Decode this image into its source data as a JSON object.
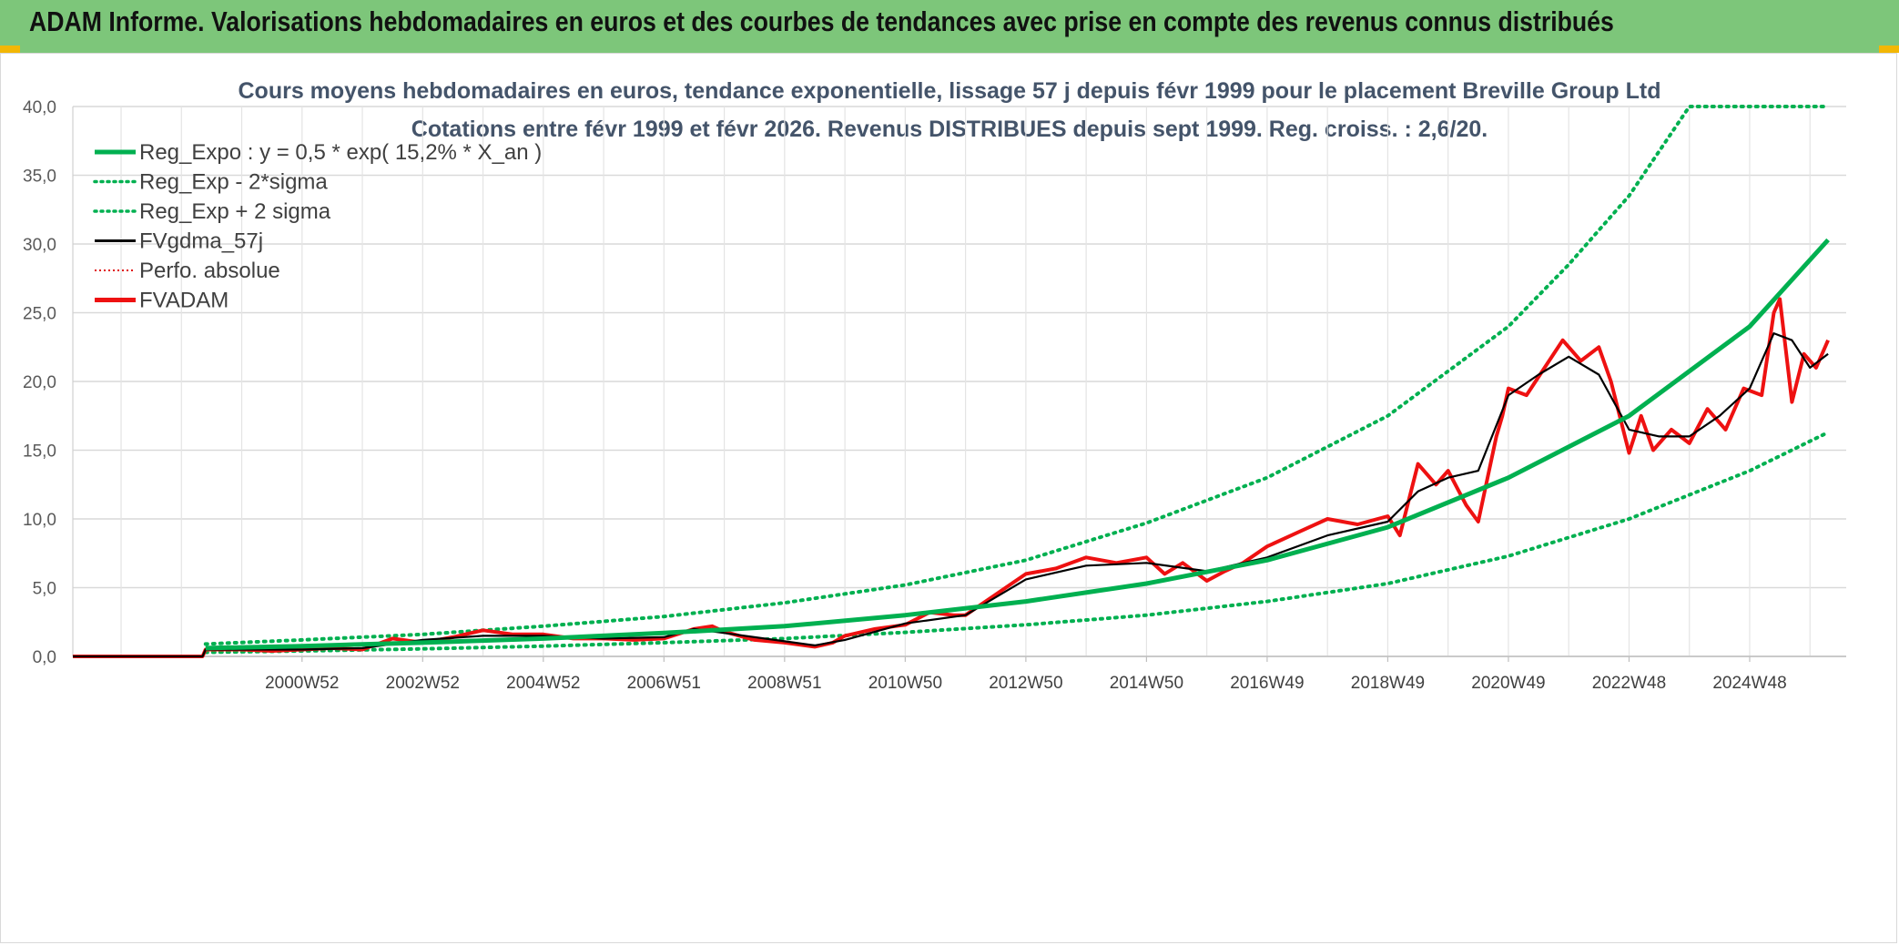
{
  "banner": {
    "title": "ADAM Informe. Valorisations hebdomadaires en euros et des courbes de tendances avec prise en compte des revenus connus distribués"
  },
  "colors": {
    "banner_bg": "#7dc67a",
    "reg_expo": "#00b050",
    "reg_band": "#00b050",
    "fvgdma": "#000000",
    "perfo": "#e01010",
    "fvadam": "#ee1111",
    "grid": "#d9d9d9"
  },
  "chart_data": {
    "type": "line",
    "title": "Cours moyens hebdomadaires en euros, tendance exponentielle, lissage 57 j depuis févr 1999 pour le placement Breville Group Ltd",
    "subtitle": "Cotations entre févr 1999 et févr 2026. Revenus DISTRIBUES depuis sept 1999. Reg. croiss. : 2,6/20.",
    "ylim": [
      0,
      40
    ],
    "yticks": [
      "0,0",
      "5,0",
      "10,0",
      "15,0",
      "20,0",
      "25,0",
      "30,0",
      "35,0",
      "40,0"
    ],
    "xlim": [
      1996.2,
      2025.6
    ],
    "xticks": [
      {
        "x": 2000.0,
        "label": "2000W52"
      },
      {
        "x": 2002.0,
        "label": "2002W52"
      },
      {
        "x": 2004.0,
        "label": "2004W52"
      },
      {
        "x": 2006.0,
        "label": "2006W51"
      },
      {
        "x": 2008.0,
        "label": "2008W51"
      },
      {
        "x": 2010.0,
        "label": "2010W50"
      },
      {
        "x": 2012.0,
        "label": "2012W50"
      },
      {
        "x": 2014.0,
        "label": "2014W50"
      },
      {
        "x": 2016.0,
        "label": "2016W49"
      },
      {
        "x": 2018.0,
        "label": "2018W49"
      },
      {
        "x": 2020.0,
        "label": "2020W49"
      },
      {
        "x": 2022.0,
        "label": "2022W48"
      },
      {
        "x": 2024.0,
        "label": "2024W48"
      }
    ],
    "grid": true,
    "legend_position": "top-left",
    "legend": [
      {
        "key": "reg_expo",
        "label": "Reg_Expo : y = 0,5 * exp( 15,2% *  X_an )",
        "style": "solid-thick",
        "color": "#00b050"
      },
      {
        "key": "reg_low",
        "label": "Reg_Exp - 2*sigma",
        "style": "dotted",
        "color": "#00b050"
      },
      {
        "key": "reg_high",
        "label": "Reg_Exp + 2 sigma",
        "style": "dotted",
        "color": "#00b050"
      },
      {
        "key": "fvgdma",
        "label": "FVgdma_57j",
        "style": "solid",
        "color": "#000000"
      },
      {
        "key": "perfo",
        "label": "Perfo. absolue",
        "style": "dotted-thin",
        "color": "#e01010"
      },
      {
        "key": "fvadam",
        "label": "FVADAM",
        "style": "solid-thick",
        "color": "#ee1111"
      }
    ],
    "series": [
      {
        "key": "reg_expo",
        "x": [
          1998.4,
          2000,
          2002,
          2004,
          2006,
          2008,
          2010,
          2012,
          2014,
          2016,
          2018,
          2020,
          2022,
          2024,
          2025.3
        ],
        "y": [
          0.6,
          0.75,
          1.0,
          1.3,
          1.7,
          2.2,
          3.0,
          4.0,
          5.3,
          7.0,
          9.4,
          13.0,
          17.5,
          24.0,
          30.3
        ]
      },
      {
        "key": "reg_low",
        "x": [
          1998.4,
          2000,
          2002,
          2004,
          2006,
          2008,
          2010,
          2012,
          2014,
          2016,
          2018,
          2020,
          2022,
          2024,
          2025.3
        ],
        "y": [
          0.3,
          0.4,
          0.55,
          0.75,
          1.0,
          1.3,
          1.75,
          2.3,
          3.0,
          4.0,
          5.3,
          7.3,
          10.0,
          13.5,
          16.3
        ]
      },
      {
        "key": "reg_high",
        "x": [
          1998.4,
          2000,
          2002,
          2004,
          2006,
          2008,
          2010,
          2012,
          2014,
          2016,
          2018,
          2020,
          2021,
          2022,
          2023.0,
          2025.3
        ],
        "y": [
          0.9,
          1.2,
          1.6,
          2.2,
          2.9,
          3.9,
          5.2,
          7.0,
          9.7,
          13.0,
          17.5,
          24.0,
          28.5,
          33.5,
          40.0,
          40.0
        ]
      },
      {
        "key": "fvgdma",
        "x": [
          1996.2,
          1998.35,
          1998.4,
          1999,
          2000,
          2001,
          2002,
          2003,
          2004,
          2005,
          2006,
          2006.5,
          2007,
          2008,
          2008.5,
          2009,
          2010,
          2011,
          2012,
          2013,
          2014,
          2015,
          2016,
          2017,
          2018,
          2018.5,
          2019,
          2019.5,
          2020,
          2020.5,
          2021,
          2021.5,
          2022,
          2022.5,
          2023,
          2023.5,
          2024,
          2024.4,
          2024.7,
          2025,
          2025.3
        ],
        "y": [
          0,
          0,
          0.5,
          0.5,
          0.5,
          0.6,
          1.2,
          1.5,
          1.5,
          1.3,
          1.4,
          2.0,
          1.7,
          1.1,
          0.8,
          1.2,
          2.4,
          3.0,
          5.6,
          6.6,
          6.8,
          6.2,
          7.2,
          8.8,
          9.8,
          12.0,
          13.0,
          13.5,
          19.0,
          20.5,
          21.8,
          20.5,
          16.5,
          16.0,
          16.0,
          17.5,
          19.5,
          23.5,
          23.0,
          21.0,
          22.0
        ]
      },
      {
        "key": "fvadam",
        "x": [
          1996.2,
          1998.35,
          1998.4,
          1999,
          1999.5,
          2000,
          2000.5,
          2001,
          2001.5,
          2002,
          2002.5,
          2003,
          2003.5,
          2004,
          2004.5,
          2005,
          2005.5,
          2006,
          2006.5,
          2006.8,
          2007,
          2007.5,
          2008,
          2008.5,
          2008.8,
          2009,
          2009.5,
          2010,
          2010.4,
          2010.8,
          2011,
          2011.5,
          2012,
          2012.5,
          2013,
          2013.5,
          2014,
          2014.3,
          2014.6,
          2015,
          2015.3,
          2015.6,
          2016,
          2016.5,
          2017,
          2017.5,
          2018,
          2018.2,
          2018.5,
          2018.8,
          2019,
          2019.3,
          2019.5,
          2019.8,
          2019.9,
          2020,
          2020.3,
          2020.6,
          2020.9,
          2021.2,
          2021.5,
          2021.7,
          2022.0,
          2022.2,
          2022.4,
          2022.7,
          2023.0,
          2023.3,
          2023.6,
          2023.9,
          2024.2,
          2024.4,
          2024.5,
          2024.7,
          2024.9,
          2025.1,
          2025.3
        ],
        "y": [
          0,
          0,
          0.5,
          0.5,
          0.4,
          0.5,
          0.6,
          0.5,
          1.3,
          1.0,
          1.4,
          1.9,
          1.6,
          1.6,
          1.3,
          1.3,
          1.2,
          1.3,
          2.0,
          2.2,
          1.8,
          1.2,
          1.0,
          0.7,
          1.0,
          1.5,
          2.0,
          2.3,
          3.2,
          3.0,
          3.0,
          4.5,
          6.0,
          6.4,
          7.2,
          6.8,
          7.2,
          6.0,
          6.8,
          5.5,
          6.2,
          6.8,
          8.0,
          9.0,
          10.0,
          9.6,
          10.2,
          8.8,
          14.0,
          12.5,
          13.5,
          11.0,
          9.8,
          16.0,
          17.5,
          19.5,
          19.0,
          21.0,
          23.0,
          21.5,
          22.5,
          20.0,
          14.8,
          17.5,
          15.0,
          16.5,
          15.5,
          18.0,
          16.5,
          19.5,
          19.0,
          25.0,
          26.0,
          18.5,
          22.0,
          21.0,
          23.0
        ]
      }
    ]
  }
}
